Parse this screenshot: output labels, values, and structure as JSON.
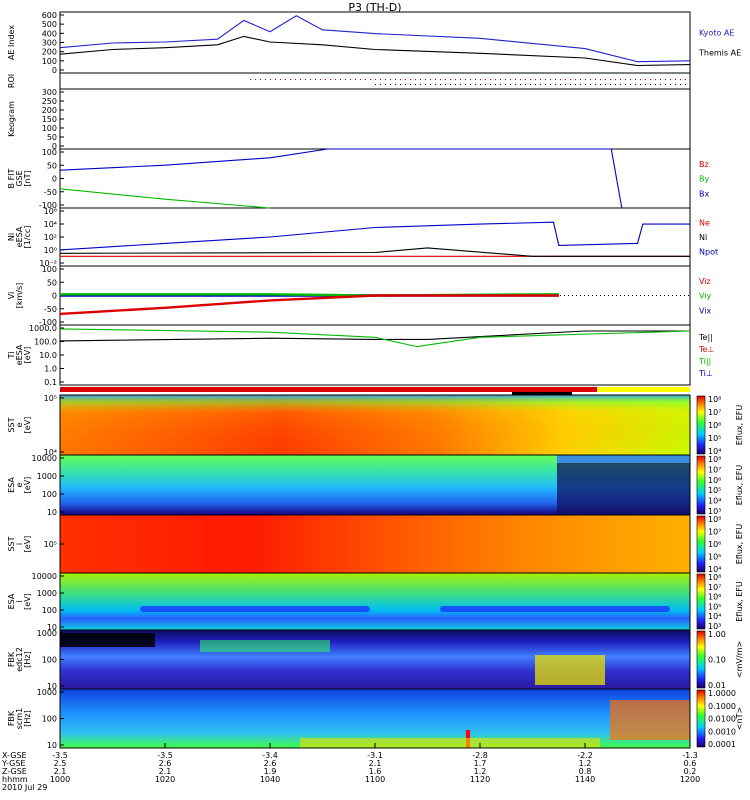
{
  "title": "P3 (TH-D)",
  "date": "2010 Jul 29",
  "colors": {
    "kyoto": "#2222cc",
    "themis": "#000000",
    "red": "#dd0000",
    "green": "#00bb00",
    "blue": "#0000cc",
    "black": "#000000"
  },
  "time_axis": {
    "ticks": [
      "1000",
      "1020",
      "1040",
      "1100",
      "1120",
      "1140",
      "1200"
    ],
    "rows": [
      {
        "label": "X-GSE",
        "values": [
          "-3.5",
          "-3.5",
          "-3.4",
          "-3.1",
          "-2.8",
          "-2.2",
          "-1.3"
        ]
      },
      {
        "label": "Y-GSE",
        "values": [
          "2.5",
          "2.6",
          "2.6",
          "2.1",
          "1.7",
          "1.2",
          "0.6"
        ]
      },
      {
        "label": "Z-GSE",
        "values": [
          "2.1",
          "2.1",
          "1.9",
          "1.6",
          "1.2",
          "0.8",
          "0.2"
        ]
      },
      {
        "label": "hhmm",
        "values": [
          "1000",
          "1020",
          "1040",
          "1100",
          "1120",
          "1140",
          "1200"
        ]
      }
    ]
  },
  "panels": [
    {
      "id": "ae",
      "ylabel": [
        "AE Index"
      ],
      "yticks": [
        "0",
        "100",
        "200",
        "300",
        "400",
        "500",
        "600"
      ],
      "legend": [
        {
          "text": "Kyoto AE",
          "color": "#2222cc"
        },
        {
          "text": "Themis AE",
          "color": "#000000"
        }
      ]
    },
    {
      "id": "roi",
      "ylabel": [
        "ROI"
      ],
      "yticks": [],
      "legend": []
    },
    {
      "id": "keogram",
      "ylabel": [
        "Keogram"
      ],
      "yticks": [
        "0",
        "50",
        "100",
        "150",
        "200",
        "250",
        "300"
      ],
      "legend": []
    },
    {
      "id": "bfit",
      "ylabel": [
        "B FIT",
        "GSE",
        "[nT]"
      ],
      "yticks": [
        "-100",
        "-50",
        "0",
        "50",
        "100"
      ],
      "legend": [
        {
          "text": "Bz",
          "color": "#dd0000"
        },
        {
          "text": "By",
          "color": "#00bb00"
        },
        {
          "text": "Bx",
          "color": "#0000cc"
        }
      ]
    },
    {
      "id": "ni",
      "ylabel": [
        "Ni",
        "eESA",
        "[1/cc]"
      ],
      "yticks": [
        "10⁻²",
        "10⁰",
        "10²",
        "10⁴",
        "10⁶"
      ],
      "legend": [
        {
          "text": "Ne",
          "color": "#dd0000"
        },
        {
          "text": "Ni",
          "color": "#000000"
        },
        {
          "text": "Npot",
          "color": "#0000cc"
        }
      ]
    },
    {
      "id": "vi",
      "ylabel": [
        "Vi",
        "[km/s]"
      ],
      "yticks": [
        "-100",
        "-50",
        "0",
        "50",
        "100"
      ],
      "legend": [
        {
          "text": "Viz",
          "color": "#dd0000"
        },
        {
          "text": "Viy",
          "color": "#00bb00"
        },
        {
          "text": "Vix",
          "color": "#0000cc"
        }
      ]
    },
    {
      "id": "ti",
      "ylabel": [
        "Ti",
        "eESA",
        "[eV]"
      ],
      "yticks": [
        "0.1",
        "1.0",
        "10.0",
        "100.0",
        "1000.0"
      ],
      "legend": [
        {
          "text": "Te||",
          "color": "#000000"
        },
        {
          "text": "Te⊥",
          "color": "#dd0000"
        },
        {
          "text": "Ti||",
          "color": "#00bb00"
        },
        {
          "text": "Ti⊥",
          "color": "#0000cc"
        }
      ]
    },
    {
      "id": "sst_e",
      "ylabel": [
        "SST",
        "e",
        "[eV]"
      ],
      "yticks": [
        "10⁴",
        "10⁵"
      ],
      "legend": []
    },
    {
      "id": "esa_e",
      "ylabel": [
        "ESA",
        "e",
        "[eV]"
      ],
      "yticks": [
        "10",
        "100",
        "1000",
        "10000"
      ],
      "legend": []
    },
    {
      "id": "sst_i",
      "ylabel": [
        "SST",
        "i",
        "[eV]"
      ],
      "yticks": [
        "10⁵"
      ],
      "legend": []
    },
    {
      "id": "esa_i",
      "ylabel": [
        "ESA",
        "i",
        "[eV]"
      ],
      "yticks": [
        "10",
        "100",
        "1000",
        "10000"
      ],
      "legend": []
    },
    {
      "id": "fbk1",
      "ylabel": [
        "FBK",
        "edc12",
        "[Hz]"
      ],
      "yticks": [
        "10",
        "100",
        "1000"
      ],
      "legend": []
    },
    {
      "id": "fbk2",
      "ylabel": [
        "FBK",
        "scm1",
        "[Hz]"
      ],
      "yticks": [
        "10",
        "100",
        "1000"
      ],
      "legend": []
    }
  ],
  "colorbars": [
    {
      "id": "cb1",
      "label": "Eflux, EFU",
      "ticks": [
        "10⁴",
        "10⁵",
        "10⁶",
        "10⁷",
        "10⁸"
      ]
    },
    {
      "id": "cb2",
      "label": "Eflux, EFU",
      "ticks": [
        "10³",
        "10⁴",
        "10⁵",
        "10⁶",
        "10⁷",
        "10⁸"
      ]
    },
    {
      "id": "cb3",
      "label": "Eflux, EFU",
      "ticks": [
        "10⁴",
        "10⁵",
        "10⁶",
        "10⁷",
        "10⁸"
      ]
    },
    {
      "id": "cb4",
      "label": "Eflux, EFU",
      "ticks": [
        "10³",
        "10⁴",
        "10⁵",
        "10⁶",
        "10⁷",
        "10⁸"
      ]
    },
    {
      "id": "cb5",
      "label": "<mV/m>",
      "ticks": [
        "0.01",
        "0.10",
        "1.00"
      ]
    },
    {
      "id": "cb6",
      "label": "<nT>",
      "ticks": [
        "0.0001",
        "0.0010",
        "0.0100",
        "0.1000",
        "1.0000"
      ]
    }
  ],
  "chart_data": {
    "type": "line",
    "title": "P3 (TH-D)",
    "x_unit": "hhmm",
    "x_range": [
      "1000",
      "1200"
    ],
    "series": [
      {
        "name": "Kyoto AE",
        "panel": "ae",
        "x": [
          "1000",
          "1010",
          "1020",
          "1030",
          "1035",
          "1040",
          "1045",
          "1050",
          "1100",
          "1120",
          "1140",
          "1150",
          "1200"
        ],
        "y": [
          270,
          320,
          330,
          360,
          560,
          440,
          610,
          460,
          420,
          370,
          260,
          120,
          130
        ]
      },
      {
        "name": "Themis AE",
        "panel": "ae",
        "x": [
          "1000",
          "1010",
          "1020",
          "1030",
          "1035",
          "1040",
          "1050",
          "1100",
          "1120",
          "1140",
          "1150",
          "1200"
        ],
        "y": [
          200,
          250,
          270,
          300,
          390,
          330,
          300,
          250,
          210,
          160,
          80,
          90
        ]
      },
      {
        "name": "Bx",
        "panel": "bfit",
        "x": [
          "1000",
          "1020",
          "1040",
          "1051",
          "1145",
          "1147"
        ],
        "y": [
          28,
          45,
          70,
          100,
          100,
          -100
        ]
      },
      {
        "name": "By",
        "panel": "bfit",
        "x": [
          "1000",
          "1020",
          "1040"
        ],
        "y": [
          -35,
          -70,
          -100
        ]
      },
      {
        "name": "Npot",
        "panel": "ni",
        "x": [
          "1000",
          "1020",
          "1040",
          "1100",
          "1120",
          "1134",
          "1135",
          "1150",
          "1151",
          "1200"
        ],
        "y": [
          1,
          10,
          100,
          3000,
          10000,
          20000,
          5,
          10,
          10000,
          10000
        ]
      },
      {
        "name": "Ne",
        "panel": "ni",
        "x": [
          "1000",
          "1200"
        ],
        "y": [
          0.1,
          0.1
        ]
      },
      {
        "name": "Ni",
        "panel": "ni",
        "x": [
          "1000",
          "1100",
          "1110",
          "1130",
          "1200"
        ],
        "y": [
          0.3,
          0.4,
          2,
          0.1,
          0.1
        ]
      },
      {
        "name": "Vix",
        "panel": "vi",
        "x": [
          "1000",
          "1040",
          "1100",
          "1135"
        ],
        "y": [
          0,
          0,
          0,
          0
        ]
      },
      {
        "name": "Viy",
        "panel": "vi",
        "x": [
          "1000",
          "1040",
          "1100",
          "1135"
        ],
        "y": [
          5,
          5,
          0,
          5
        ]
      },
      {
        "name": "Viz",
        "panel": "vi",
        "x": [
          "1000",
          "1020",
          "1040",
          "1100",
          "1135"
        ],
        "y": [
          -75,
          -50,
          -20,
          0,
          0
        ]
      },
      {
        "name": "Te||",
        "panel": "ti",
        "x": [
          "1000",
          "1040",
          "1100",
          "1110",
          "1140",
          "1200"
        ],
        "y": [
          150,
          250,
          200,
          200,
          1000,
          1000
        ]
      },
      {
        "name": "Ti||",
        "panel": "ti",
        "x": [
          "1000",
          "1040",
          "1100",
          "1108",
          "1120",
          "1200"
        ],
        "y": [
          1500,
          800,
          300,
          50,
          300,
          1000
        ]
      }
    ]
  }
}
